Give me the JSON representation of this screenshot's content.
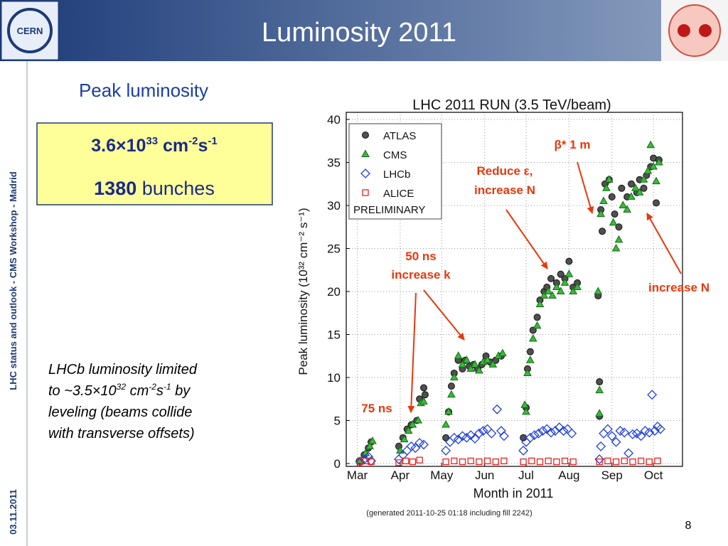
{
  "header": {
    "title": "Luminosity 2011"
  },
  "sidebar": {
    "event": "LHC status and outlook - CMS Workshop - Madrid",
    "date": "03.11.2011"
  },
  "section_title": "Peak luminosity",
  "highlight": {
    "line1": [
      "3.6×10",
      "33",
      " cm",
      "-2",
      "s",
      "-1"
    ],
    "line2": [
      "1380",
      " bunches"
    ]
  },
  "note": {
    "line0": "LHCb luminosity limited",
    "line1": [
      "to ~3.5×10",
      "32",
      " cm",
      "-2",
      "s",
      "-1",
      " by"
    ],
    "line2": "leveling (beams collide",
    "line3": "with transverse offsets)"
  },
  "page_number": "8",
  "chart_data": {
    "type": "scatter",
    "title": "LHC 2011 RUN (3.5 TeV/beam)",
    "x_label": "Month in 2011",
    "y_label": "Peak luminosity (10³² cm⁻² s⁻¹)",
    "footnote": "(generated 2011-10-25 01:18 including fill 2242)",
    "legend_note": "PRELIMINARY",
    "legend": "upper left",
    "grid": true,
    "xlim": [
      52,
      295
    ],
    "xticks": [
      {
        "value": 60,
        "label": "Mar"
      },
      {
        "value": 91,
        "label": "Apr"
      },
      {
        "value": 121,
        "label": "May"
      },
      {
        "value": 152,
        "label": "Jun"
      },
      {
        "value": 182,
        "label": "Jul"
      },
      {
        "value": 213,
        "label": "Aug"
      },
      {
        "value": 244,
        "label": "Sep"
      },
      {
        "value": 274,
        "label": "Oct"
      }
    ],
    "ylim": [
      0,
      40
    ],
    "yticks": [
      0,
      5,
      10,
      15,
      20,
      25,
      30,
      35,
      40
    ],
    "annotations": [
      "β* 1 m",
      "Reduce ε,",
      "increase N",
      "50 ns",
      "increase k",
      "75 ns",
      "increase N"
    ],
    "series": [
      {
        "name": "ATLAS",
        "marker": "circle",
        "color": "#505050",
        "x": [
          61.5,
          65,
          68,
          70,
          90,
          93,
          96,
          99,
          103,
          105,
          108,
          109,
          124,
          126,
          128,
          130,
          133,
          136,
          138,
          141,
          144,
          147,
          150,
          153,
          156,
          160,
          164,
          180,
          182,
          183,
          185,
          187,
          190,
          192,
          195,
          197,
          200,
          204,
          207,
          210,
          213,
          216,
          219,
          234,
          235,
          235,
          236,
          237,
          239,
          242,
          244,
          246,
          249,
          251,
          255,
          258,
          262,
          264,
          267,
          269,
          272,
          274,
          276,
          278
        ],
        "values": [
          0.3,
          1,
          1.8,
          2.5,
          2,
          3,
          4,
          4.5,
          5,
          7.5,
          8.8,
          8,
          3,
          6,
          9,
          10.5,
          12,
          11,
          12,
          11.3,
          11.5,
          11,
          11.5,
          12.5,
          11.8,
          12,
          12.5,
          3,
          6.5,
          11,
          13,
          15.5,
          17,
          19,
          20,
          20.5,
          21.5,
          21,
          22,
          21.5,
          23.5,
          20.5,
          21,
          19.5,
          9.5,
          5.5,
          29.5,
          27,
          32.5,
          33,
          31,
          29,
          27.5,
          32,
          31,
          32.5,
          31.5,
          33,
          32,
          33.5,
          34.5,
          35.5,
          30.3,
          35.3
        ]
      },
      {
        "name": "CMS",
        "marker": "triangle",
        "color": "#2ca02c",
        "x": [
          62,
          66,
          69,
          71,
          91,
          94,
          97,
          100,
          104,
          106,
          108,
          124,
          126,
          128,
          130,
          133,
          136,
          139,
          142,
          145,
          148,
          151,
          154,
          158,
          162,
          165,
          181,
          182,
          183,
          185,
          187,
          190,
          192,
          195,
          198,
          201,
          204,
          207,
          210,
          213,
          216,
          219,
          234,
          235,
          235,
          236,
          238,
          240,
          242,
          245,
          247,
          249,
          252,
          255,
          258,
          261,
          264,
          267,
          270,
          272,
          274,
          276,
          278
        ],
        "values": [
          0.3,
          1.2,
          2,
          2.6,
          1.5,
          2.8,
          3.8,
          4.5,
          5,
          7,
          7.2,
          4.5,
          6,
          8,
          10,
          12.5,
          11.5,
          12,
          11,
          11.5,
          10.8,
          11.8,
          12,
          11.5,
          12.5,
          12.8,
          6.8,
          6,
          10.5,
          12,
          14.5,
          16,
          18.5,
          19.5,
          20,
          19.5,
          20.5,
          20,
          21,
          22,
          20,
          20.5,
          20,
          8.5,
          5.8,
          29,
          30.5,
          32,
          33,
          28,
          25,
          26,
          30,
          29.5,
          31,
          32,
          31.5,
          33,
          34,
          37,
          34.5,
          32.8,
          35
        ]
      },
      {
        "name": "LHCb",
        "marker": "diamond",
        "color": "#1f3fe0",
        "x": [
          62,
          65,
          68,
          70,
          90,
          93,
          96,
          99,
          102,
          105,
          108,
          124,
          127,
          130,
          133,
          136,
          139,
          142,
          145,
          148,
          151,
          154,
          157,
          161,
          164,
          166,
          180,
          182,
          185,
          188,
          191,
          194,
          197,
          200,
          203,
          206,
          209,
          212,
          215,
          235,
          236,
          238,
          241,
          244,
          247,
          250,
          253,
          256,
          259,
          262,
          265,
          268,
          271,
          273,
          275,
          277,
          279
        ],
        "values": [
          0.2,
          0.5,
          0.8,
          0.3,
          0.5,
          1,
          1.5,
          2,
          1.8,
          2.4,
          2.2,
          1.5,
          2.5,
          3,
          2.8,
          3.2,
          3,
          3.3,
          2.9,
          3.5,
          3.8,
          4,
          3.5,
          6.3,
          3.8,
          3.2,
          1.5,
          2.5,
          3,
          3.3,
          3.5,
          3.8,
          4,
          3.6,
          3.8,
          4.2,
          3.8,
          4,
          3.5,
          0.5,
          2,
          3.5,
          4,
          3.2,
          2.5,
          3.8,
          3.6,
          1.2,
          3.4,
          3.5,
          3.2,
          3.8,
          3.6,
          8,
          3.8,
          4.3,
          4
        ]
      },
      {
        "name": "ALICE",
        "marker": "square",
        "color": "#e82020",
        "x": [
          62,
          66,
          70,
          90,
          95,
          100,
          105,
          124,
          130,
          136,
          142,
          148,
          154,
          160,
          166,
          180,
          186,
          192,
          198,
          204,
          210,
          216,
          235,
          241,
          247,
          253,
          259,
          265,
          271,
          277
        ],
        "values": [
          0.2,
          0.3,
          0.2,
          0.1,
          0.3,
          0.2,
          0.4,
          0.2,
          0.3,
          0.2,
          0.3,
          0.2,
          0.3,
          0.2,
          0.3,
          0.2,
          0.3,
          0.2,
          0.3,
          0.2,
          0.3,
          0.2,
          0.2,
          0.3,
          0.2,
          0.3,
          0.2,
          0.3,
          0.2,
          0.3
        ]
      }
    ]
  }
}
